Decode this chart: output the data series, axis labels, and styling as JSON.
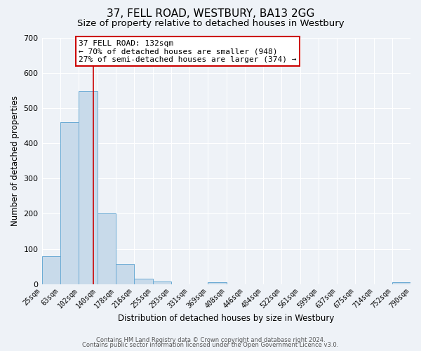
{
  "title": "37, FELL ROAD, WESTBURY, BA13 2GG",
  "subtitle": "Size of property relative to detached houses in Westbury",
  "xlabel": "Distribution of detached houses by size in Westbury",
  "ylabel": "Number of detached properties",
  "bin_edges": [
    25,
    63,
    102,
    140,
    178,
    216,
    255,
    293,
    331,
    369,
    408,
    446,
    484,
    522,
    561,
    599,
    637,
    675,
    714,
    752,
    790
  ],
  "bin_heights": [
    80,
    460,
    548,
    200,
    57,
    15,
    8,
    0,
    0,
    5,
    0,
    0,
    0,
    0,
    0,
    0,
    0,
    0,
    0,
    5
  ],
  "bar_color": "#c8daea",
  "bar_edge_color": "#6aaad4",
  "vline_x": 132,
  "vline_color": "#cc0000",
  "annotation_text": "37 FELL ROAD: 132sqm\n← 70% of detached houses are smaller (948)\n27% of semi-detached houses are larger (374) →",
  "annotation_box_color": "#ffffff",
  "annotation_box_edge": "#cc0000",
  "ylim": [
    0,
    700
  ],
  "yticks": [
    0,
    100,
    200,
    300,
    400,
    500,
    600,
    700
  ],
  "tick_labels": [
    "25sqm",
    "63sqm",
    "102sqm",
    "140sqm",
    "178sqm",
    "216sqm",
    "255sqm",
    "293sqm",
    "331sqm",
    "369sqm",
    "408sqm",
    "446sqm",
    "484sqm",
    "522sqm",
    "561sqm",
    "599sqm",
    "637sqm",
    "675sqm",
    "714sqm",
    "752sqm",
    "790sqm"
  ],
  "footer1": "Contains HM Land Registry data © Crown copyright and database right 2024.",
  "footer2": "Contains public sector information licensed under the Open Government Licence v3.0.",
  "background_color": "#eef2f7",
  "grid_color": "#ffffff",
  "title_fontsize": 11,
  "subtitle_fontsize": 9.5,
  "axis_label_fontsize": 8.5,
  "tick_fontsize": 7,
  "annotation_fontsize": 8,
  "footer_fontsize": 6
}
